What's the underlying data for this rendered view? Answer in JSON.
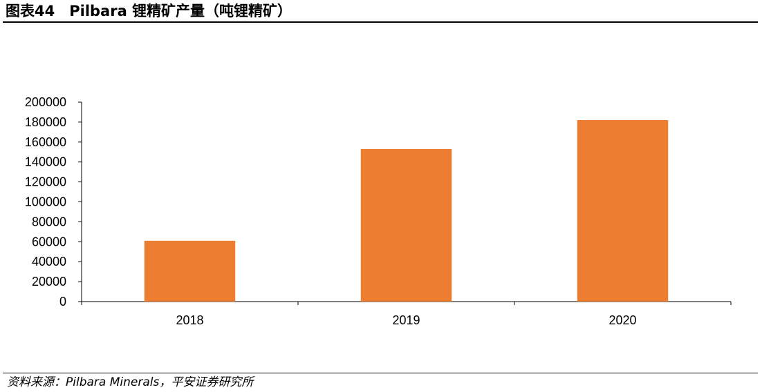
{
  "header": {
    "title": "图表44　Pilbara 锂精矿产量（吨锂精矿）"
  },
  "footer": {
    "source": "资料来源：Pilbara Minerals，平安证券研究所"
  },
  "chart_data": {
    "type": "bar",
    "title": "",
    "categories": [
      "2018",
      "2019",
      "2020"
    ],
    "series": [
      {
        "values": [
          61000,
          153000,
          182000
        ]
      }
    ],
    "ylim": [
      0,
      200000
    ],
    "yticks": [
      0,
      20000,
      40000,
      60000,
      80000,
      100000,
      120000,
      140000,
      160000,
      180000,
      200000
    ],
    "grid": false,
    "legend": "none",
    "colors": {
      "bar": "#ED7D31",
      "axis": "#000000"
    }
  }
}
